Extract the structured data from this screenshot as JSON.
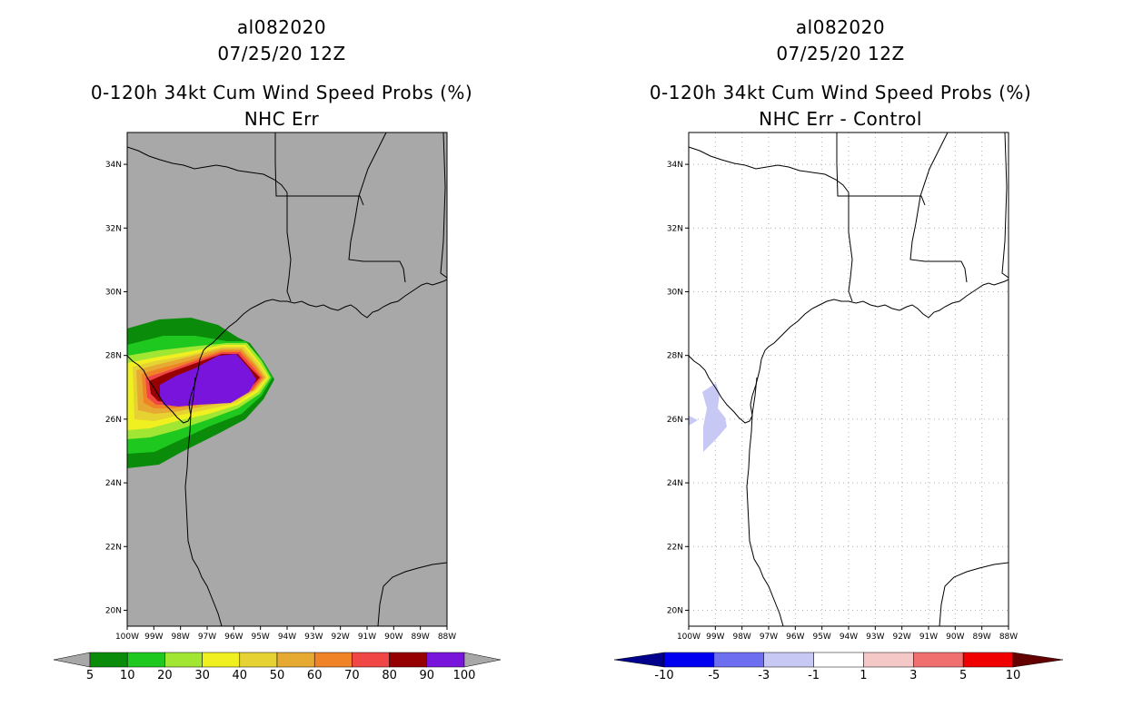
{
  "left_panel": {
    "storm_id": "al082020",
    "datetime": "07/25/20 12Z",
    "product": "0-120h 34kt Cum Wind Speed Probs (%)",
    "subtitle": "NHC Err",
    "colorbar": {
      "labels": [
        "5",
        "10",
        "20",
        "30",
        "40",
        "50",
        "60",
        "70",
        "80",
        "90",
        "100"
      ],
      "colors": [
        "#0a8c0a",
        "#1ec81e",
        "#a0e632",
        "#f0f020",
        "#e6d232",
        "#e6aa32",
        "#f08228",
        "#f04646",
        "#960000",
        "#7814dc"
      ],
      "under_color": "#a8a8a8",
      "over_color": "#a8a8a8"
    }
  },
  "right_panel": {
    "storm_id": "al082020",
    "datetime": "07/25/20 12Z",
    "product": "0-120h 34kt Cum Wind Speed Probs (%)",
    "subtitle": "NHC Err - Control",
    "colorbar": {
      "labels": [
        "-10",
        "-5",
        "-3",
        "-1",
        "1",
        "3",
        "5",
        "10"
      ],
      "colors": [
        "#0000f0",
        "#6e6ef0",
        "#c8c8f5",
        "#ffffff",
        "#f5c8c8",
        "#f07070",
        "#f00000"
      ],
      "under_color": "#00008c",
      "over_color": "#640000"
    }
  },
  "axes": {
    "lat_labels": [
      "34N",
      "32N",
      "30N",
      "28N",
      "26N",
      "24N",
      "22N",
      "20N"
    ],
    "lon_labels": [
      "100W",
      "99W",
      "98W",
      "97W",
      "96W",
      "95W",
      "94W",
      "93W",
      "92W",
      "91W",
      "90W",
      "89W",
      "88W"
    ],
    "lat_range": [
      19.5,
      35.0
    ],
    "lon_range": [
      -100,
      -88
    ]
  },
  "colors": {
    "map_background_left": "#a8a8a8",
    "map_background_right": "#ffffff"
  }
}
